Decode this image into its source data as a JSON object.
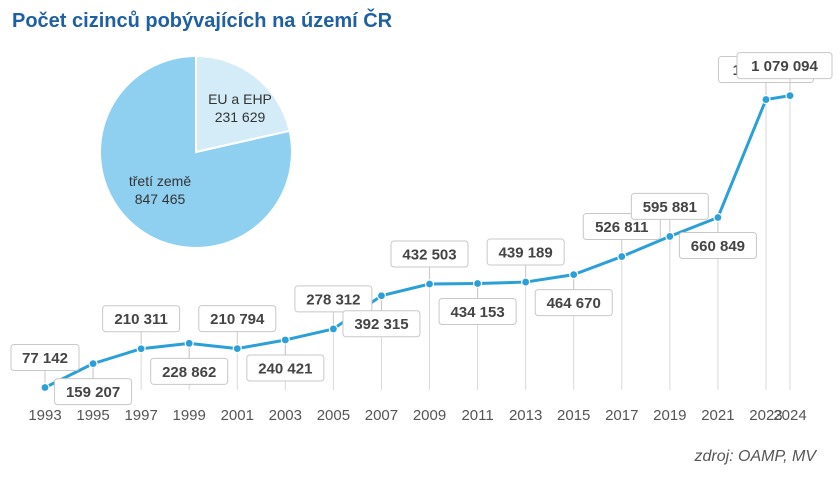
{
  "title": "Počet cizinců pobývajících na území ČR",
  "source": "zdroj: OAMP, MV",
  "colors": {
    "title": "#1f5fa3",
    "line": "#2a9fd8",
    "point": "#2a9fd8",
    "pie_eu": "#d4ecf7",
    "pie_third": "#8fd0f1",
    "label_border": "#c8c8c8",
    "label_text": "#444444",
    "gridline": "#d9d9d9"
  },
  "chart_data": [
    {
      "type": "line",
      "x": [
        "1993",
        "1995",
        "1997",
        "1999",
        "2001",
        "2003",
        "2005",
        "2007",
        "2009",
        "2011",
        "2013",
        "2015",
        "2017",
        "2019",
        "2021",
        "2023",
        "2024"
      ],
      "values": [
        77142,
        159207,
        210311,
        228862,
        210794,
        240421,
        278312,
        392315,
        432503,
        434153,
        439189,
        464670,
        526811,
        595881,
        660849,
        1065740,
        1079094
      ],
      "data_labels": [
        "77 142",
        "159 207",
        "210 311",
        "228 862",
        "210 794",
        "240 421",
        "278 312",
        "392 315",
        "432 503",
        "434 153",
        "439 189",
        "464 670",
        "526 811",
        "595 881",
        "660 849",
        "1 065 740",
        "1 079 094"
      ],
      "label_position": [
        "above",
        "below",
        "above",
        "below",
        "above",
        "below",
        "above",
        "below",
        "above",
        "below",
        "above",
        "below",
        "above",
        "above",
        "below",
        "above",
        "above"
      ],
      "ylim": [
        0,
        1150000
      ],
      "grid": "vertical drop lines"
    },
    {
      "type": "pie",
      "labels": [
        "EU a EHP",
        "třetí země"
      ],
      "values": [
        231629,
        847465
      ],
      "value_labels": [
        "231 629",
        "847 465"
      ]
    }
  ]
}
